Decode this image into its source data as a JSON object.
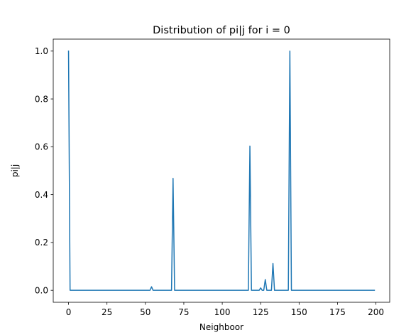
{
  "chart_data": {
    "type": "line",
    "title": "Distribution of pi|j for i = 0",
    "xlabel": "Neighboor",
    "ylabel": "pi|j",
    "xlim": [
      -9.95,
      208.95
    ],
    "ylim": [
      -0.05,
      1.05
    ],
    "xticks": [
      0,
      25,
      50,
      75,
      100,
      125,
      150,
      175,
      200
    ],
    "yticks": [
      0.0,
      0.2,
      0.4,
      0.6,
      0.8,
      1.0
    ],
    "ytick_labels": [
      "0.0",
      "0.2",
      "0.4",
      "0.6",
      "0.8",
      "1.0"
    ],
    "grid": false,
    "series": [
      {
        "color": "#1f77b4",
        "x": [
          0,
          1,
          53,
          54,
          55,
          67,
          68,
          69,
          117,
          118,
          119,
          124,
          125,
          126,
          127,
          128,
          129,
          132,
          133,
          134,
          143,
          144,
          145,
          199
        ],
        "y": [
          1.0,
          0.0,
          0.0,
          0.015,
          0.0,
          0.0,
          0.468,
          0.0,
          0.0,
          0.603,
          0.0,
          0.0,
          0.01,
          0.0,
          0.0,
          0.045,
          0.0,
          0.0,
          0.112,
          0.0,
          0.0,
          1.0,
          0.0,
          0.0
        ]
      }
    ]
  }
}
